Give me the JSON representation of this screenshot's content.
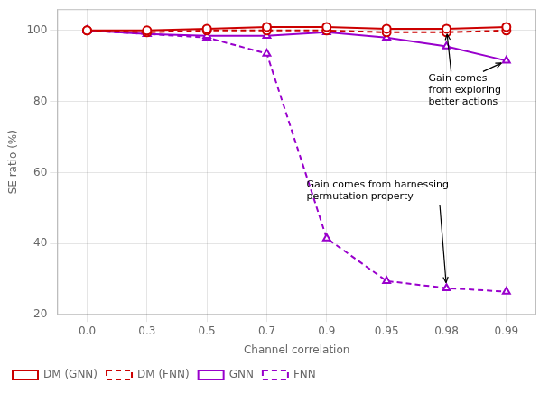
{
  "chart_data": {
    "type": "line",
    "categories": [
      "0.0",
      "0.3",
      "0.5",
      "0.7",
      "0.9",
      "0.95",
      "0.98",
      "0.99"
    ],
    "series": [
      {
        "name": "DM (GNN)",
        "color": "#cc0000",
        "marker": "circle",
        "line_style": "solid",
        "values": [
          100.0,
          100.0,
          100.5,
          101.0,
          101.0,
          100.5,
          100.5,
          101.0
        ]
      },
      {
        "name": "DM (FNN)",
        "color": "#cc0000",
        "marker": "circle",
        "line_style": "dashed",
        "values": [
          100.0,
          99.5,
          100.0,
          100.0,
          100.0,
          99.5,
          99.5,
          100.0
        ]
      },
      {
        "name": "GNN",
        "color": "#9900cc",
        "marker": "triangle",
        "line_style": "solid",
        "values": [
          100.0,
          99.0,
          98.5,
          98.5,
          99.5,
          98.0,
          95.5,
          91.5
        ]
      },
      {
        "name": "FNN",
        "color": "#9900cc",
        "marker": "triangle",
        "line_style": "dashed",
        "values": [
          100.0,
          99.0,
          98.0,
          93.5,
          41.5,
          29.5,
          27.5,
          26.5
        ]
      }
    ],
    "xlabel": "Channel correlation",
    "ylabel": "SE ratio (%)",
    "ylim": [
      20,
      106
    ],
    "yticks": [
      20,
      40,
      60,
      80,
      100
    ],
    "grid": true,
    "legend": "lower left",
    "annotations": [
      {
        "text": "Gain comes\nfrom exploring\nbetter actions",
        "arrows": [
          {
            "x": "0.98",
            "y": 100.5
          },
          {
            "x": "0.99",
            "y": 91.5
          }
        ]
      },
      {
        "text": "Gain comes from harnessing\npermutation property",
        "arrows": [
          {
            "x": "0.98",
            "y": 27.5
          }
        ]
      }
    ]
  }
}
